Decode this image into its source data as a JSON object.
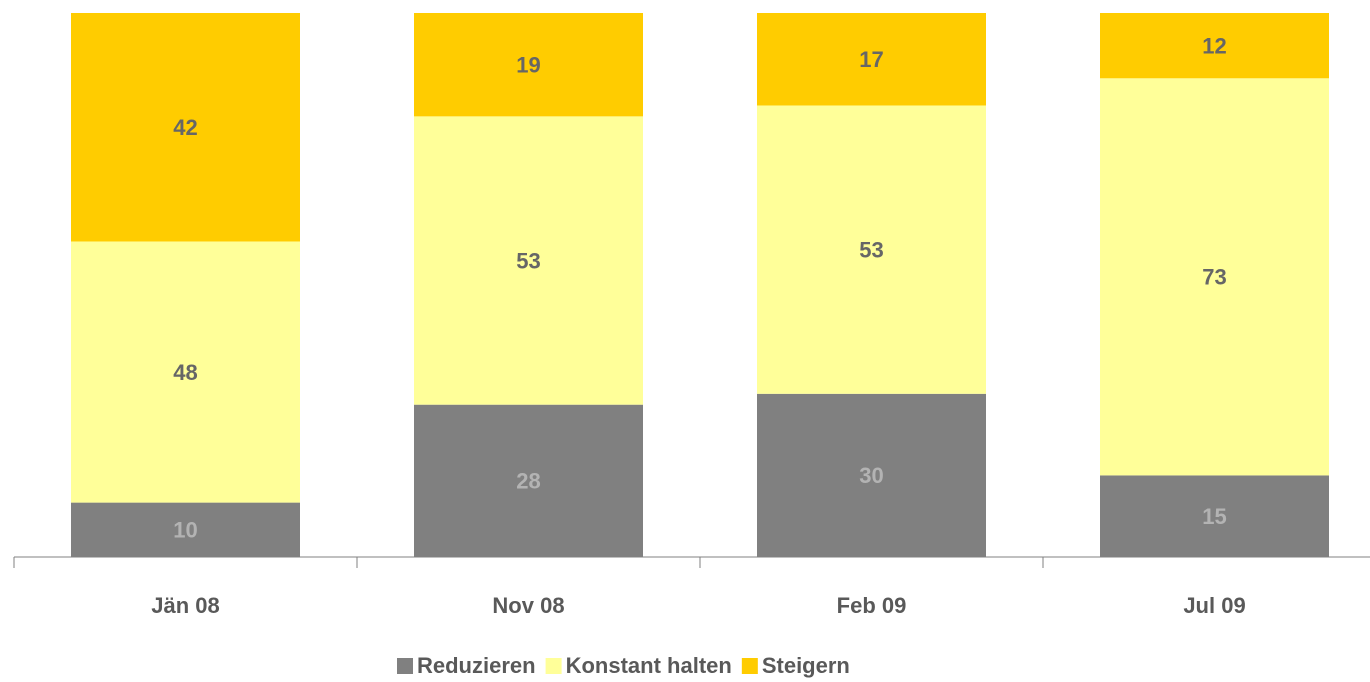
{
  "chart_data": {
    "type": "stacked_bar",
    "categories": [
      "Jän 08",
      "Nov 08",
      "Feb 09",
      "Jul 09"
    ],
    "series": [
      {
        "name": "Reduzieren",
        "color": "#808080",
        "values": [
          10,
          28,
          30,
          15
        ]
      },
      {
        "name": "Konstant halten",
        "color": "#ffff99",
        "values": [
          48,
          53,
          53,
          73
        ]
      },
      {
        "name": "Steigern",
        "color": "#ffcc00",
        "values": [
          42,
          19,
          17,
          12
        ]
      }
    ],
    "ylim": [
      0,
      100
    ],
    "legend": "bottom"
  }
}
